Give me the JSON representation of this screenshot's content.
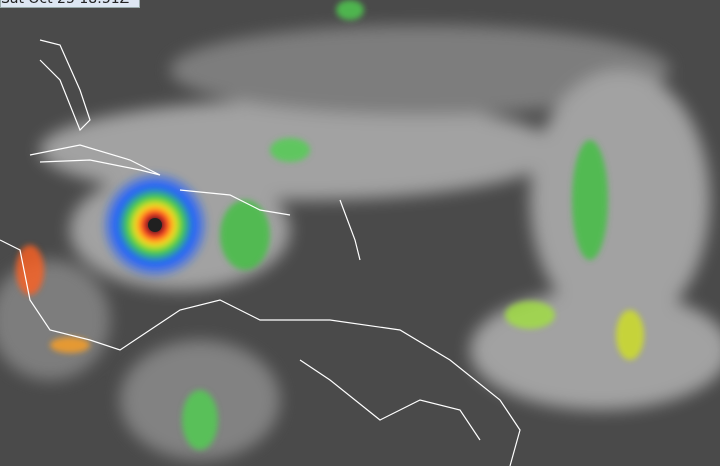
{
  "timestamp": "Sat Oct 25 18:51Z",
  "colors": {
    "ocean": "#4a4a4a",
    "cloud": "#c8c8c8",
    "coast": "#ffffff",
    "cold_top": "#ff2020",
    "eye": "#202020"
  },
  "features": [
    {
      "name": "hurricane",
      "icon": "storm-eye"
    },
    {
      "name": "coastlines",
      "icon": "coastline"
    }
  ]
}
